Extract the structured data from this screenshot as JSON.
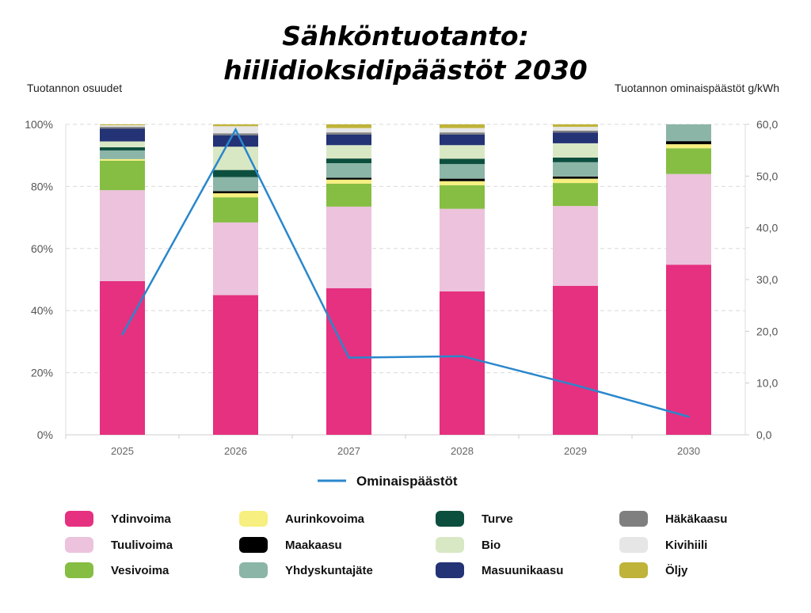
{
  "chart_data": {
    "type": "bar",
    "stacked": true,
    "title": [
      "Sähköntuotanto:",
      "hiilidioksidipäästöt 2030"
    ],
    "ylabel_left": "Tuotannon osuudet",
    "ylabel_right": "Tuotannon ominaispäästöt g/kWh",
    "categories": [
      "2025",
      "2026",
      "2027",
      "2028",
      "2029",
      "2030"
    ],
    "y_left": {
      "range": [
        0,
        100
      ],
      "ticks": [
        "0%",
        "20%",
        "40%",
        "60%",
        "80%",
        "100%"
      ]
    },
    "y_right": {
      "range": [
        0,
        60
      ],
      "ticks": [
        "0,0",
        "10,0",
        "20,0",
        "30,0",
        "40,0",
        "50,0",
        "60,0"
      ]
    },
    "grid": true,
    "series": [
      {
        "name": "Ydinvoima",
        "color": "#e5317f",
        "values": [
          49.5,
          45.0,
          47.2,
          46.2,
          48.0,
          54.8
        ]
      },
      {
        "name": "Tuulivoima",
        "color": "#ecc2dc",
        "values": [
          29.3,
          23.4,
          26.3,
          26.6,
          25.7,
          29.2
        ]
      },
      {
        "name": "Vesivoima",
        "color": "#86be43",
        "values": [
          9.5,
          8.1,
          7.4,
          7.6,
          7.4,
          8.3
        ]
      },
      {
        "name": "Aurinkovoima",
        "color": "#f7ef7f",
        "values": [
          0.5,
          1.3,
          1.3,
          1.3,
          1.4,
          1.3
        ]
      },
      {
        "name": "Maakaasu",
        "color": "#000000",
        "values": [
          0.0,
          0.7,
          0.6,
          0.8,
          0.7,
          1.0
        ]
      },
      {
        "name": "Yhdyskuntajäte",
        "color": "#8bb5a7",
        "values": [
          2.8,
          4.5,
          4.7,
          4.7,
          4.6,
          5.4
        ]
      },
      {
        "name": "Turve",
        "color": "#0d4f3e",
        "values": [
          1.0,
          2.3,
          1.5,
          1.7,
          1.5,
          0.0
        ]
      },
      {
        "name": "Bio",
        "color": "#d9e8c4",
        "values": [
          1.9,
          7.5,
          4.3,
          4.4,
          4.6,
          0.0
        ]
      },
      {
        "name": "Masuunikaasu",
        "color": "#233375",
        "values": [
          4.1,
          3.7,
          3.4,
          3.4,
          3.5,
          0.0
        ]
      },
      {
        "name": "Häkäkaasu",
        "color": "#7f7f7f",
        "values": [
          0.6,
          0.6,
          0.7,
          0.7,
          0.6,
          0.0
        ]
      },
      {
        "name": "Kivihiili",
        "color": "#e6e6e6",
        "values": [
          0.5,
          2.3,
          1.4,
          1.4,
          1.2,
          0.0
        ]
      },
      {
        "name": "Öljy",
        "color": "#bfb33a",
        "values": [
          0.3,
          0.6,
          1.2,
          1.2,
          0.8,
          0.0
        ]
      }
    ],
    "line": {
      "name": "Ominaispäästöt",
      "color": "#2a87cc",
      "axis": "right",
      "values": [
        19.4,
        59.0,
        14.9,
        15.2,
        9.6,
        3.5
      ]
    },
    "legend_position": "bottom"
  }
}
